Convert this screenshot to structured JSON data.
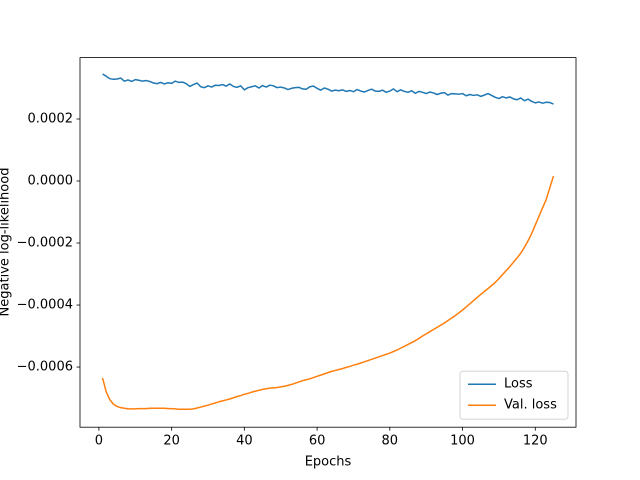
{
  "chart_data": {
    "type": "line",
    "xlabel": "Epochs",
    "ylabel": "Negative log-likelihood",
    "x": [
      1,
      2,
      3,
      4,
      5,
      6,
      7,
      8,
      9,
      10,
      11,
      12,
      13,
      14,
      15,
      16,
      17,
      18,
      19,
      20,
      21,
      22,
      23,
      24,
      25,
      26,
      27,
      28,
      29,
      30,
      31,
      32,
      33,
      34,
      35,
      36,
      37,
      38,
      39,
      40,
      41,
      42,
      43,
      44,
      45,
      46,
      47,
      48,
      49,
      50,
      51,
      52,
      53,
      54,
      55,
      56,
      57,
      58,
      59,
      60,
      61,
      62,
      63,
      64,
      65,
      66,
      67,
      68,
      69,
      70,
      71,
      72,
      73,
      74,
      75,
      76,
      77,
      78,
      79,
      80,
      81,
      82,
      83,
      84,
      85,
      86,
      87,
      88,
      89,
      90,
      91,
      92,
      93,
      94,
      95,
      96,
      97,
      98,
      99,
      100,
      101,
      102,
      103,
      104,
      105,
      106,
      107,
      108,
      109,
      110,
      111,
      112,
      113,
      114,
      115,
      116,
      117,
      118,
      119,
      120,
      121,
      122,
      123,
      124,
      125
    ],
    "series": [
      {
        "name": "Loss",
        "color": "#1f77b4",
        "values": [
          0.000345,
          0.000338,
          0.00033,
          0.000328,
          0.000329,
          0.000332,
          0.000322,
          0.000326,
          0.000321,
          0.000327,
          0.000325,
          0.000322,
          0.000324,
          0.000321,
          0.000316,
          0.000314,
          0.000318,
          0.000313,
          0.000317,
          0.000315,
          0.000322,
          0.000318,
          0.000319,
          0.000314,
          0.000305,
          0.000311,
          0.000316,
          0.000304,
          0.000301,
          0.000307,
          0.000303,
          0.000309,
          0.000308,
          0.000311,
          0.000306,
          0.000313,
          0.000305,
          0.000302,
          0.000307,
          0.000294,
          0.000301,
          0.000304,
          0.000307,
          0.0003,
          0.000308,
          0.000303,
          0.000309,
          0.000307,
          0.000301,
          0.000303,
          0.0003,
          0.000295,
          0.000299,
          0.000301,
          0.000302,
          0.000297,
          0.000296,
          0.000304,
          0.000306,
          0.000299,
          0.000293,
          0.0003,
          0.000296,
          0.00029,
          0.000293,
          0.000291,
          0.000294,
          0.000289,
          0.000292,
          0.000288,
          0.000295,
          0.00029,
          0.000287,
          0.000292,
          0.000296,
          0.00029,
          0.000289,
          0.000293,
          0.000286,
          0.00029,
          0.000297,
          0.000288,
          0.000294,
          0.000289,
          0.000286,
          0.000291,
          0.000283,
          0.000289,
          0.000286,
          0.000282,
          0.000287,
          0.000284,
          0.000279,
          0.000283,
          0.000285,
          0.000277,
          0.000282,
          0.000281,
          0.00028,
          0.000282,
          0.000275,
          0.000279,
          0.000276,
          0.000278,
          0.000273,
          0.000277,
          0.000282,
          0.000276,
          0.00027,
          0.000266,
          0.000272,
          0.000268,
          0.000271,
          0.000265,
          0.000262,
          0.000268,
          0.000259,
          0.000264,
          0.000257,
          0.000252,
          0.000255,
          0.000251,
          0.000254,
          0.000253,
          0.000248
        ]
      },
      {
        "name": "Val. loss",
        "color": "#ff7f0e",
        "values": [
          -0.000635,
          -0.00068,
          -0.000705,
          -0.00072,
          -0.000727,
          -0.000731,
          -0.000733,
          -0.000735,
          -0.000735,
          -0.000735,
          -0.000734,
          -0.000734,
          -0.000734,
          -0.000733,
          -0.000733,
          -0.000733,
          -0.000733,
          -0.000733,
          -0.000734,
          -0.000734,
          -0.000735,
          -0.000736,
          -0.000736,
          -0.000736,
          -0.000736,
          -0.000735,
          -0.000732,
          -0.000729,
          -0.000726,
          -0.000723,
          -0.000719,
          -0.000716,
          -0.000712,
          -0.000709,
          -0.000706,
          -0.000703,
          -0.000699,
          -0.000695,
          -0.000692,
          -0.000688,
          -0.000685,
          -0.000681,
          -0.000678,
          -0.000675,
          -0.000672,
          -0.00067,
          -0.000668,
          -0.000667,
          -0.000666,
          -0.000664,
          -0.000662,
          -0.000659,
          -0.000656,
          -0.000652,
          -0.000648,
          -0.000644,
          -0.000641,
          -0.000638,
          -0.000634,
          -0.00063,
          -0.000626,
          -0.000622,
          -0.000618,
          -0.000614,
          -0.000611,
          -0.000608,
          -0.000605,
          -0.000601,
          -0.000598,
          -0.000594,
          -0.000591,
          -0.000587,
          -0.000583,
          -0.000579,
          -0.000575,
          -0.000571,
          -0.000567,
          -0.000563,
          -0.000559,
          -0.000555,
          -0.00055,
          -0.000545,
          -0.000539,
          -0.000533,
          -0.000527,
          -0.000521,
          -0.000515,
          -0.000508,
          -0.0005,
          -0.000493,
          -0.000486,
          -0.000479,
          -0.000472,
          -0.000465,
          -0.000458,
          -0.00045,
          -0.000442,
          -0.000434,
          -0.000425,
          -0.000416,
          -0.000406,
          -0.000396,
          -0.000386,
          -0.000376,
          -0.000366,
          -0.000356,
          -0.000347,
          -0.000337,
          -0.000327,
          -0.000315,
          -0.000302,
          -0.000289,
          -0.000276,
          -0.000262,
          -0.000248,
          -0.000233,
          -0.000214,
          -0.000193,
          -0.00017,
          -0.000142,
          -0.000114,
          -8.7e-05,
          -6e-05,
          -2.2e-05,
          1.6e-05
        ]
      }
    ],
    "xlim": [
      -5.2,
      131.2
    ],
    "ylim": [
      -0.000794,
      0.000398
    ],
    "xticks": [
      0,
      20,
      40,
      60,
      80,
      100,
      120
    ],
    "yticks": [
      {
        "value": -0.0006,
        "label": "−0.0006"
      },
      {
        "value": -0.0004,
        "label": "−0.0004"
      },
      {
        "value": -0.0002,
        "label": "−0.0002"
      },
      {
        "value": 0,
        "label": "0.0000"
      },
      {
        "value": 0.0002,
        "label": "0.0002"
      }
    ],
    "legend": "lower right",
    "grid": false
  }
}
